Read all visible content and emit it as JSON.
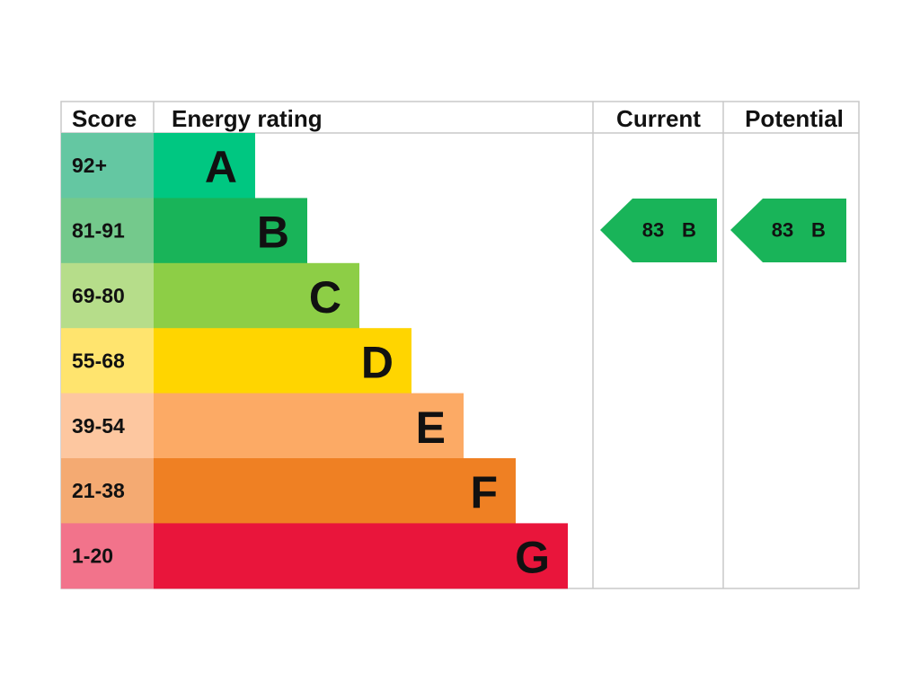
{
  "header": {
    "score": "Score",
    "energy_rating": "Energy rating",
    "current": "Current",
    "potential": "Potential"
  },
  "rows": [
    {
      "score": "92+",
      "rating": "A"
    },
    {
      "score": "81-91",
      "rating": "B"
    },
    {
      "score": "69-80",
      "rating": "C"
    },
    {
      "score": "55-68",
      "rating": "D"
    },
    {
      "score": "39-54",
      "rating": "E"
    },
    {
      "score": "21-38",
      "rating": "F"
    },
    {
      "score": "1-20",
      "rating": "G"
    }
  ],
  "current": {
    "score": "83",
    "rating": "B"
  },
  "potential": {
    "score": "83",
    "rating": "B"
  }
}
